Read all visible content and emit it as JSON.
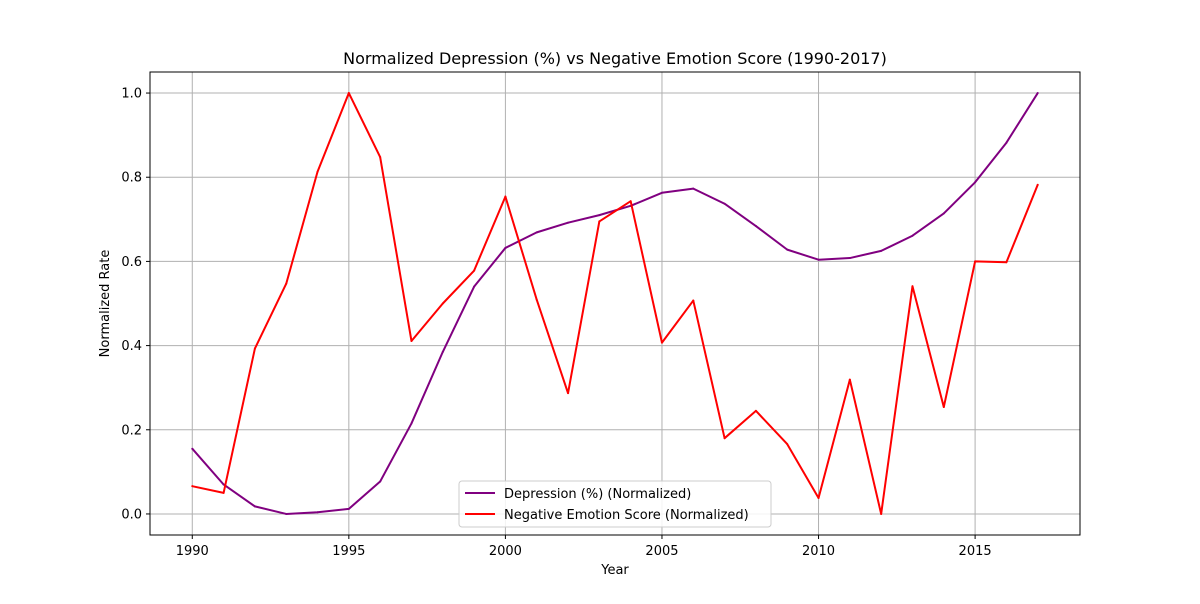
{
  "chart_data": {
    "type": "line",
    "title": "Normalized Depression (%) vs Negative Emotion Score (1990-2017)",
    "xlabel": "Year",
    "ylabel": "Normalized Rate",
    "xlim": [
      1988.65,
      2018.35
    ],
    "ylim": [
      -0.05,
      1.05
    ],
    "xticks": [
      1990,
      1995,
      2000,
      2005,
      2010,
      2015
    ],
    "yticks": [
      0.0,
      0.2,
      0.4,
      0.6,
      0.8,
      1.0
    ],
    "ytick_labels": [
      "0.0",
      "0.2",
      "0.4",
      "0.6",
      "0.8",
      "1.0"
    ],
    "grid": true,
    "legend_position": "bottom-center",
    "x": [
      1990,
      1991,
      1992,
      1993,
      1994,
      1995,
      1996,
      1997,
      1998,
      1999,
      2000,
      2001,
      2002,
      2003,
      2004,
      2005,
      2006,
      2007,
      2008,
      2009,
      2010,
      2011,
      2012,
      2013,
      2014,
      2015,
      2016,
      2017
    ],
    "series": [
      {
        "name": "Depression (%) (Normalized)",
        "color": "#800080",
        "values": [
          0.155,
          0.07,
          0.018,
          0.0,
          0.004,
          0.012,
          0.077,
          0.215,
          0.385,
          0.54,
          0.632,
          0.669,
          0.692,
          0.71,
          0.732,
          0.763,
          0.773,
          0.737,
          0.684,
          0.628,
          0.604,
          0.608,
          0.625,
          0.661,
          0.714,
          0.788,
          0.882,
          1.0
        ]
      },
      {
        "name": "Negative Emotion Score (Normalized)",
        "color": "#ff0000",
        "values": [
          0.066,
          0.05,
          0.393,
          0.547,
          0.813,
          1.0,
          0.848,
          0.411,
          0.5,
          0.578,
          0.754,
          0.509,
          0.287,
          0.695,
          0.743,
          0.407,
          0.507,
          0.18,
          0.245,
          0.166,
          0.038,
          0.319,
          0.0,
          0.541,
          0.254,
          0.6,
          0.598,
          0.782
        ]
      }
    ]
  }
}
